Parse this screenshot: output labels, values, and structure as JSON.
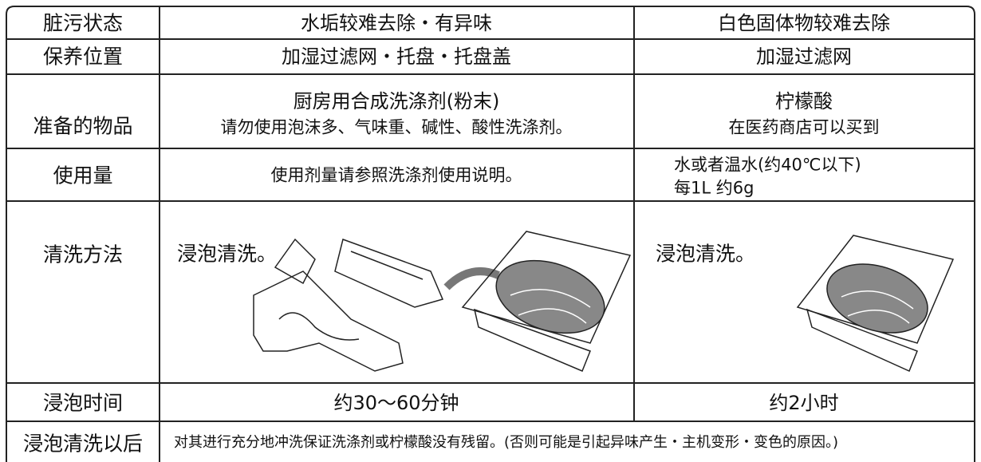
{
  "table": {
    "rows": [
      {
        "label": "脏污状态",
        "cells": [
          "水垢较难去除・有异味",
          "白色固体物较难去除"
        ]
      },
      {
        "label": "保养位置",
        "cells": [
          "加湿过滤网・托盘・托盘盖",
          "加湿过滤网"
        ]
      },
      {
        "label": "准备的物品",
        "cells": [
          {
            "title": "厨房用合成洗涤剂(粉末)",
            "note": "请勿使用泡沫多、气味重、碱性、酸性洗涤剂。"
          },
          {
            "title": "柠檬酸",
            "note": "在医药商店可以买到"
          }
        ]
      },
      {
        "label": "使用量",
        "cells": [
          "使用剂量请参照洗涤剂使用说明。",
          [
            "水或者温水(约40℃以下)",
            "每1L 约6g"
          ]
        ]
      },
      {
        "label": "清洗方法",
        "cells": [
          "浸泡清洗。",
          "浸泡清洗。"
        ]
      },
      {
        "label": "浸泡时间",
        "cells": [
          "约30～60分钟",
          "约2小时"
        ]
      },
      {
        "label": "浸泡清洗以后",
        "cells": [
          "对其进行充分地冲洗保证洗涤剂或柠檬酸没有残留。(否则可能是引起异味产生・主机变形・变色的原因。)"
        ]
      }
    ]
  }
}
